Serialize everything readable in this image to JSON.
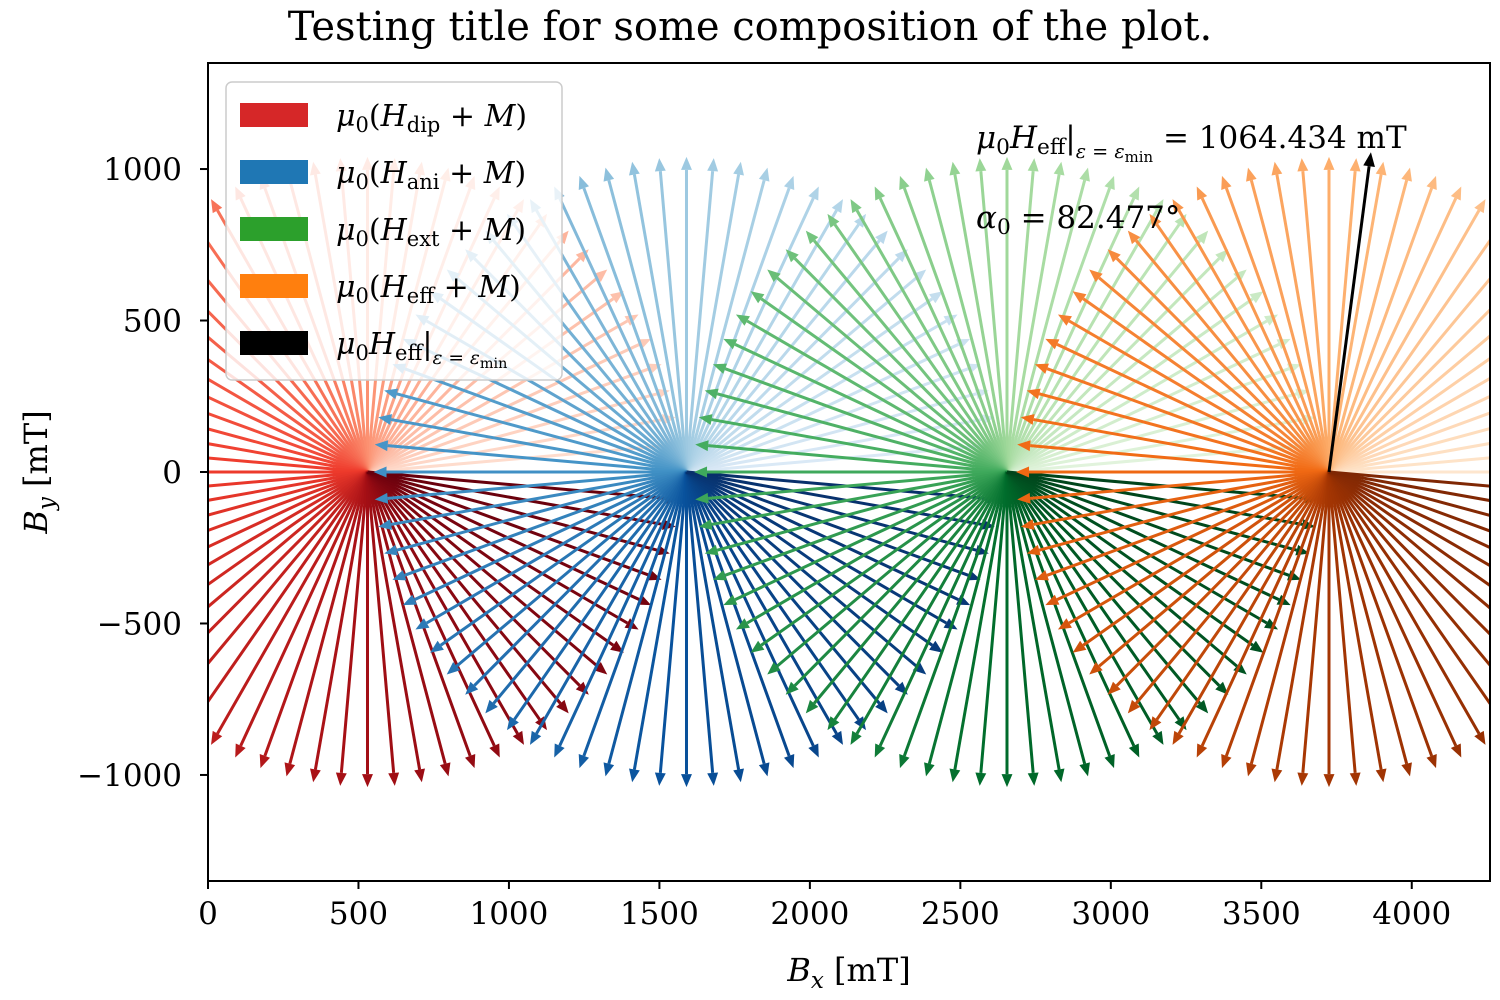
{
  "chart_data": {
    "type": "quiver",
    "title": "Testing title for some composition of the plot.",
    "xlabel": "B_x [mT]",
    "ylabel": "B_y [mT]",
    "xlim": [
      0,
      4260
    ],
    "ylim": [
      -1350,
      1350
    ],
    "xticks": [
      0,
      500,
      1000,
      1500,
      2000,
      2500,
      3000,
      3500,
      4000
    ],
    "yticks": [
      -1000,
      -500,
      0,
      500,
      1000
    ],
    "ytick_labels": [
      "−1000",
      "−500",
      "0",
      "500",
      "1000"
    ],
    "fan_magnitude_mT": 1040,
    "fan_arrow_count": 72,
    "series": [
      {
        "name": "dip",
        "legend": "μ0(H_dip + M)",
        "legend_sub": "dip",
        "origin": [
          530,
          0
        ],
        "color": "#d62728",
        "palette": [
          "#fee0d2",
          "#fc9272",
          "#ef3b2c",
          "#a50f15",
          "#67000d"
        ]
      },
      {
        "name": "ani",
        "legend": "μ0(H_ani + M)",
        "legend_sub": "ani",
        "origin": [
          1590,
          0
        ],
        "color": "#1f77b4",
        "palette": [
          "#deebf7",
          "#9ecae1",
          "#4292c6",
          "#08519c",
          "#08306b"
        ]
      },
      {
        "name": "ext",
        "legend": "μ0(H_ext + M)",
        "legend_sub": "ext",
        "origin": [
          2655,
          0
        ],
        "color": "#2ca02c",
        "palette": [
          "#e5f5e0",
          "#a1d99b",
          "#41ab5d",
          "#006d2c",
          "#00441b"
        ]
      },
      {
        "name": "eff",
        "legend": "μ0(H_eff + M)",
        "legend_sub": "eff",
        "origin": [
          3725,
          0
        ],
        "color": "#ff7f0e",
        "palette": [
          "#fee6ce",
          "#fdae6b",
          "#f16913",
          "#a63603",
          "#7f2704"
        ]
      }
    ],
    "highlight": {
      "legend": "μ0 H_eff |ε = εmin",
      "color": "#000000",
      "origin": [
        3725,
        0
      ],
      "magnitude_mT": 1064.434,
      "angle_deg": 82.477
    },
    "annotations": {
      "magnitude_value": "1064.434",
      "magnitude_unit": "mT",
      "angle_value": "82.477°"
    }
  }
}
